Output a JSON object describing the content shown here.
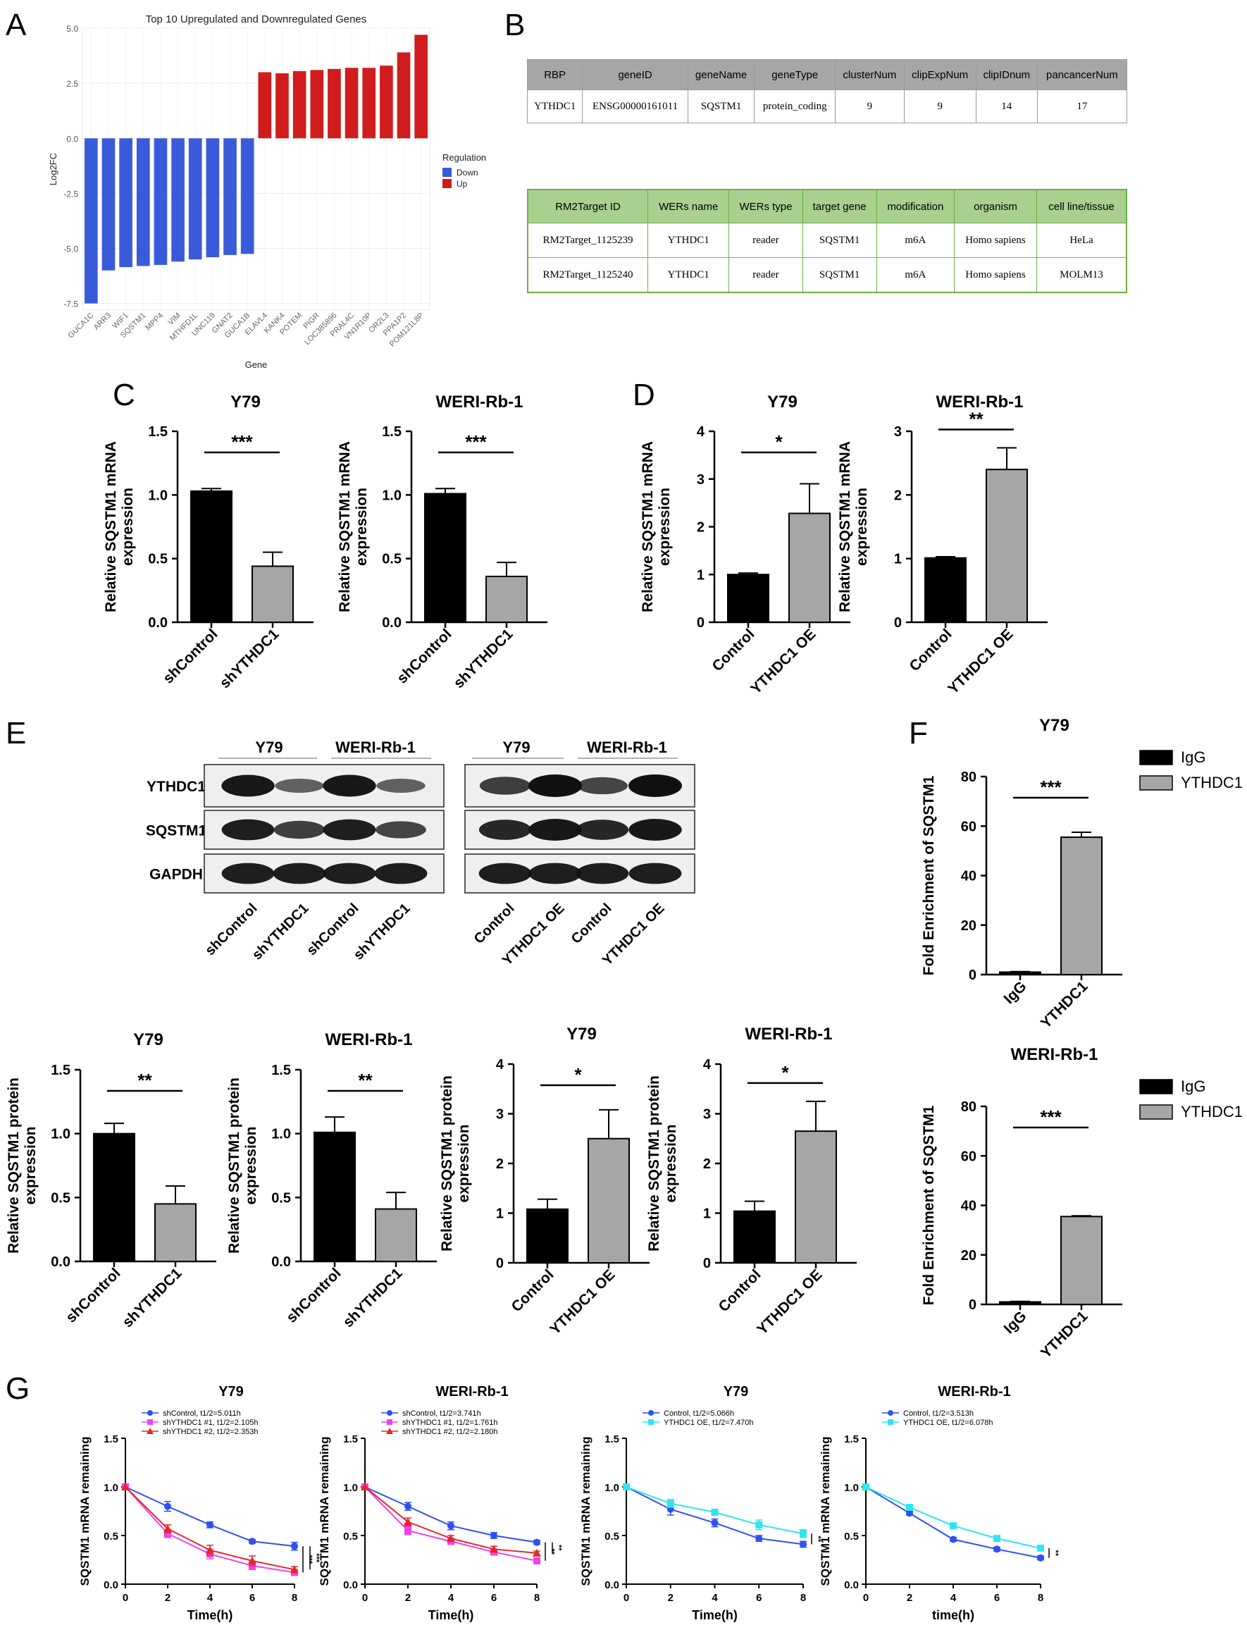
{
  "panel_labels": [
    "A",
    "B",
    "C",
    "D",
    "E",
    "F",
    "G"
  ],
  "colors": {
    "down": "#3a5bd9",
    "up": "#d01c1c",
    "black": "#000000",
    "gray": "#a6a6a6",
    "blue": "#2f4ff5",
    "magenta": "#f040f0",
    "red": "#e8262a",
    "cyan": "#2fe6f0"
  },
  "panelA": {
    "chart_data": {
      "type": "bar",
      "title": "Top 10 Upregulated and Downregulated Genes",
      "xlabel": "Gene",
      "ylabel": "Log2FC",
      "ylim": [
        -7.8,
        5.0
      ],
      "yticks": [
        "5.0",
        "2.5",
        "0.0",
        "-2.5",
        "-5.0",
        "-7.5"
      ],
      "categories": [
        "GUCA1C",
        "ARR3",
        "WIF1",
        "SQSTM1",
        "MPP4",
        "VIM",
        "MTHFD1L",
        "UNC119",
        "GNAT2",
        "GUCA1B",
        "ELAVL4",
        "KANK4",
        "POTEM",
        "PIGR",
        "LOC385896",
        "PRAL4C",
        "VN1R10P",
        "OR2L3",
        "PPA1P2",
        "POM121L8P"
      ],
      "values": [
        -7.5,
        -6.0,
        -5.85,
        -5.8,
        -5.75,
        -5.6,
        -5.5,
        -5.4,
        -5.3,
        -5.25,
        3.0,
        2.95,
        3.05,
        3.1,
        3.15,
        3.2,
        3.2,
        3.3,
        3.9,
        4.7
      ],
      "regulation": [
        "Down",
        "Down",
        "Down",
        "Down",
        "Down",
        "Down",
        "Down",
        "Down",
        "Down",
        "Down",
        "Up",
        "Up",
        "Up",
        "Up",
        "Up",
        "Up",
        "Up",
        "Up",
        "Up",
        "Up"
      ],
      "legend_title": "Regulation",
      "legend": [
        "Down",
        "Up"
      ]
    }
  },
  "panelB": {
    "table1": {
      "headers": [
        "RBP",
        "geneID",
        "geneName",
        "geneType",
        "clusterNum",
        "clipExpNum",
        "clipIDnum",
        "pancancerNum"
      ],
      "rows": [
        [
          "YTHDC1",
          "ENSG00000161011",
          "SQSTM1",
          "protein_coding",
          "9",
          "9",
          "14",
          "17"
        ]
      ]
    },
    "table2": {
      "headers": [
        "RM2Target ID",
        "WERs name",
        "WERs type",
        "target gene",
        "modification",
        "organism",
        "cell line/tissue"
      ],
      "rows": [
        [
          "RM2Target_1125239",
          "YTHDC1",
          "reader",
          "SQSTM1",
          "m6A",
          "Homo sapiens",
          "HeLa"
        ],
        [
          "RM2Target_1125240",
          "YTHDC1",
          "reader",
          "SQSTM1",
          "m6A",
          "Homo sapiens",
          "MOLM13"
        ]
      ]
    }
  },
  "chart_data": [
    {
      "id": "C-Y79",
      "type": "bar",
      "title": "Y79",
      "ylabel_lines": [
        "Relative SQSTM1 mRNA",
        "expression"
      ],
      "ylim": [
        0,
        1.5
      ],
      "yticks": [
        "0.0",
        "0.5",
        "1.0",
        "1.5"
      ],
      "categories": [
        "shControl",
        "shYTHDC1"
      ],
      "values": [
        1.03,
        0.44
      ],
      "errors": [
        0.02,
        0.11
      ],
      "significance": "***"
    },
    {
      "id": "C-WERI",
      "type": "bar",
      "title": "WERI-Rb-1",
      "ylabel_lines": [
        "Relative SQSTM1 mRNA",
        "expression"
      ],
      "ylim": [
        0,
        1.5
      ],
      "yticks": [
        "0.0",
        "0.5",
        "1.0",
        "1.5"
      ],
      "categories": [
        "shControl",
        "shYTHDC1"
      ],
      "values": [
        1.01,
        0.36
      ],
      "errors": [
        0.04,
        0.11
      ],
      "significance": "***"
    },
    {
      "id": "D-Y79",
      "type": "bar",
      "title": "Y79",
      "ylabel_lines": [
        "Relative SQSTM1 mRNA",
        "expression"
      ],
      "ylim": [
        0,
        4
      ],
      "yticks": [
        "0",
        "1",
        "2",
        "3",
        "4"
      ],
      "categories": [
        "Control",
        "YTHDC1 OE"
      ],
      "values": [
        1.0,
        2.28
      ],
      "errors": [
        0.03,
        0.62
      ],
      "significance": "*"
    },
    {
      "id": "D-WERI",
      "type": "bar",
      "title": "WERI-Rb-1",
      "ylabel_lines": [
        "Relative SQSTM1 mRNA",
        "expression"
      ],
      "ylim": [
        0,
        3
      ],
      "yticks": [
        "0",
        "1",
        "2",
        "3"
      ],
      "categories": [
        "Control",
        "YTHDC1 OE"
      ],
      "values": [
        1.01,
        2.4
      ],
      "errors": [
        0.02,
        0.34
      ],
      "significance": "**"
    },
    {
      "id": "E-Y79-kd",
      "type": "bar",
      "title": "Y79",
      "ylabel_lines": [
        "Relative SQSTM1 protein",
        "expression"
      ],
      "ylim": [
        0,
        1.5
      ],
      "yticks": [
        "0.0",
        "0.5",
        "1.0",
        "1.5"
      ],
      "categories": [
        "shControl",
        "shYTHDC1"
      ],
      "values": [
        1.0,
        0.45
      ],
      "errors": [
        0.08,
        0.14
      ],
      "significance": "**"
    },
    {
      "id": "E-WERI-kd",
      "type": "bar",
      "title": "WERI-Rb-1",
      "ylabel_lines": [
        "Relative SQSTM1 protein",
        "expression"
      ],
      "ylim": [
        0,
        1.5
      ],
      "yticks": [
        "0.0",
        "0.5",
        "1.0",
        "1.5"
      ],
      "categories": [
        "shControl",
        "shYTHDC1"
      ],
      "values": [
        1.01,
        0.41
      ],
      "errors": [
        0.12,
        0.13
      ],
      "significance": "**"
    },
    {
      "id": "E-Y79-oe",
      "type": "bar",
      "title": "Y79",
      "ylabel_lines": [
        "Relative SQSTM1 protein",
        "expression"
      ],
      "ylim": [
        0,
        4
      ],
      "yticks": [
        "0",
        "1",
        "2",
        "3",
        "4"
      ],
      "categories": [
        "Control",
        "YTHDC1 OE"
      ],
      "values": [
        1.08,
        2.5
      ],
      "errors": [
        0.2,
        0.58
      ],
      "significance": "*"
    },
    {
      "id": "E-WERI-oe",
      "type": "bar",
      "title": "WERI-Rb-1",
      "ylabel_lines": [
        "Relative SQSTM1 protein",
        "expression"
      ],
      "ylim": [
        0,
        4
      ],
      "yticks": [
        "0",
        "1",
        "2",
        "3",
        "4"
      ],
      "categories": [
        "Control",
        "YTHDC1 OE"
      ],
      "values": [
        1.04,
        2.65
      ],
      "errors": [
        0.2,
        0.6
      ],
      "significance": "*"
    },
    {
      "id": "F-Y79",
      "type": "bar",
      "title": "Y79",
      "ylabel_lines": [
        "Fold Enrichment of SQSTM1"
      ],
      "ylim": [
        0,
        80
      ],
      "yticks": [
        "0",
        "20",
        "40",
        "60",
        "80"
      ],
      "categories": [
        "IgG",
        "YTHDC1"
      ],
      "values": [
        1.0,
        55.5
      ],
      "errors": [
        0.2,
        2.0
      ],
      "significance": "***",
      "legend": [
        "IgG",
        "YTHDC1"
      ]
    },
    {
      "id": "F-WERI",
      "type": "bar",
      "title": "WERI-Rb-1",
      "ylabel_lines": [
        "Fold Enrichment of SQSTM1"
      ],
      "ylim": [
        0,
        80
      ],
      "yticks": [
        "0",
        "20",
        "40",
        "60",
        "80"
      ],
      "categories": [
        "IgG",
        "YTHDC1"
      ],
      "values": [
        1.0,
        35.5
      ],
      "errors": [
        0.2,
        0.3
      ],
      "significance": "***",
      "legend": [
        "IgG",
        "YTHDC1"
      ]
    },
    {
      "id": "G-Y79-kd",
      "type": "line",
      "title": "Y79",
      "xlabel": "Time(h)",
      "ylabel": "SQSTM1 mRNA remaining",
      "x": [
        0,
        2,
        4,
        6,
        8
      ],
      "ylim": [
        0,
        1.5
      ],
      "yticks": [
        "0.0",
        "0.5",
        "1.0",
        "1.5"
      ],
      "xticks": [
        "0",
        "2",
        "4",
        "6",
        "8"
      ],
      "series": [
        {
          "name": "shControl, t1/2=5.011h",
          "values": [
            1.0,
            0.8,
            0.61,
            0.44,
            0.39
          ],
          "errors": [
            0,
            0.05,
            0.03,
            0.02,
            0.04
          ]
        },
        {
          "name": "shYTHDC1 #1, t1/2=2.105h",
          "values": [
            1.0,
            0.52,
            0.31,
            0.19,
            0.12
          ],
          "errors": [
            0,
            0.04,
            0.05,
            0.04,
            0.03
          ]
        },
        {
          "name": "shYTHDC1 #2, t1/2=2.353h",
          "values": [
            1.0,
            0.57,
            0.35,
            0.24,
            0.15
          ],
          "errors": [
            0,
            0.04,
            0.05,
            0.05,
            0.03
          ]
        }
      ],
      "significance": [
        "***",
        "***"
      ]
    },
    {
      "id": "G-WERI-kd",
      "type": "line",
      "title": "WERI-Rb-1",
      "xlabel": "Time(h)",
      "ylabel": "SQSTM1 mRNA remaining",
      "x": [
        0,
        2,
        4,
        6,
        8
      ],
      "ylim": [
        0,
        1.5
      ],
      "yticks": [
        "0.0",
        "0.5",
        "1.0",
        "1.5"
      ],
      "xticks": [
        "0",
        "2",
        "4",
        "6",
        "8"
      ],
      "series": [
        {
          "name": "shControl, t1/2=3.741h",
          "values": [
            1.0,
            0.8,
            0.6,
            0.5,
            0.43
          ],
          "errors": [
            0,
            0.04,
            0.04,
            0.03,
            0.02
          ]
        },
        {
          "name": "shYTHDC1 #1, t1/2=1.761h",
          "values": [
            1.0,
            0.55,
            0.44,
            0.33,
            0.24
          ],
          "errors": [
            0,
            0.04,
            0.03,
            0.03,
            0.03
          ]
        },
        {
          "name": "shYTHDC1 #2, t1/2=2.180h",
          "values": [
            1.0,
            0.64,
            0.47,
            0.36,
            0.32
          ],
          "errors": [
            0,
            0.04,
            0.03,
            0.03,
            0.02
          ]
        }
      ],
      "significance": [
        "**",
        "**"
      ]
    },
    {
      "id": "G-Y79-oe",
      "type": "line",
      "title": "Y79",
      "xlabel": "Time(h)",
      "ylabel": "SQSTM1 mRNA remaining",
      "x": [
        0,
        2,
        4,
        6,
        8
      ],
      "ylim": [
        0,
        1.5
      ],
      "yticks": [
        "0.0",
        "0.5",
        "1.0",
        "1.5"
      ],
      "xticks": [
        "0",
        "2",
        "4",
        "6",
        "8"
      ],
      "series": [
        {
          "name": "Control, t1/2=5.066h",
          "values": [
            1.0,
            0.77,
            0.63,
            0.47,
            0.41
          ],
          "errors": [
            0,
            0.06,
            0.04,
            0.03,
            0.03
          ]
        },
        {
          "name": "YTHDC1 OE, t1/2=7.470h",
          "values": [
            1.0,
            0.83,
            0.74,
            0.61,
            0.52
          ],
          "errors": [
            0,
            0.04,
            0.03,
            0.05,
            0.04
          ]
        }
      ],
      "significance": [
        "**"
      ]
    },
    {
      "id": "G-WERI-oe",
      "type": "line",
      "title": "WERI-Rb-1",
      "xlabel": "time(h)",
      "ylabel": "SQSTM1 mRNA remaining",
      "x": [
        0,
        2,
        4,
        6,
        8
      ],
      "ylim": [
        0,
        1.5
      ],
      "yticks": [
        "0.0",
        "0.5",
        "1.0",
        "1.5"
      ],
      "xticks": [
        "0",
        "2",
        "4",
        "6",
        "8"
      ],
      "series": [
        {
          "name": "Control, t1/2=3.513h",
          "values": [
            1.0,
            0.73,
            0.46,
            0.36,
            0.27
          ],
          "errors": [
            0,
            0.02,
            0.02,
            0.02,
            0.02
          ]
        },
        {
          "name": "YTHDC1 OE, t1/2=6.078h",
          "values": [
            1.0,
            0.79,
            0.6,
            0.47,
            0.37
          ],
          "errors": [
            0,
            0.02,
            0.03,
            0.02,
            0.02
          ]
        }
      ],
      "significance": [
        "**"
      ]
    }
  ],
  "panelE_blot": {
    "cell_lines": [
      "Y79",
      "WERI-Rb-1",
      "Y79",
      "WERI-Rb-1"
    ],
    "proteins": [
      "YTHDC1",
      "SQSTM1",
      "GAPDH"
    ],
    "lanes_left": [
      "shControl",
      "shYTHDC1",
      "shControl",
      "shYTHDC1"
    ],
    "lanes_right": [
      "Control",
      "YTHDC1 OE",
      "Control",
      "YTHDC1 OE"
    ],
    "band_intensity": [
      [
        0.95,
        0.45,
        0.95,
        0.45,
        0.7,
        1.0,
        0.65,
        1.0
      ],
      [
        0.9,
        0.7,
        0.9,
        0.65,
        0.85,
        0.95,
        0.85,
        0.95
      ],
      [
        0.9,
        0.9,
        0.9,
        0.9,
        0.9,
        0.9,
        0.9,
        0.9
      ]
    ]
  }
}
